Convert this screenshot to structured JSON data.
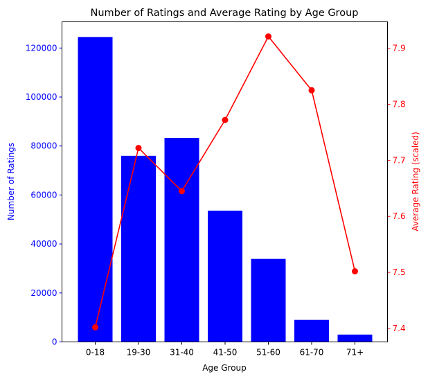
{
  "chart_data": {
    "type": "bar+line",
    "title": "Number of Ratings and Average Rating by Age Group",
    "xlabel": "Age Group",
    "ylabel_left": "Number of Ratings",
    "ylabel_right": "Average Rating (scaled)",
    "categories": [
      "0-18",
      "19-30",
      "31-40",
      "41-50",
      "51-60",
      "61-70",
      "71+"
    ],
    "bars": {
      "name": "Number of Ratings",
      "color": "#0000ff",
      "values": [
        124500,
        76000,
        83300,
        53600,
        33900,
        9000,
        3000
      ]
    },
    "line": {
      "name": "Average Rating (scaled)",
      "color": "#ff0000",
      "values": [
        7.402,
        7.722,
        7.645,
        7.772,
        7.921,
        7.825,
        7.502
      ]
    },
    "left_axis": {
      "ylim": [
        0,
        130700
      ],
      "ticks": [
        0,
        20000,
        40000,
        60000,
        80000,
        100000,
        120000
      ],
      "tick_labels": [
        "0",
        "20000",
        "40000",
        "60000",
        "80000",
        "100000",
        "120000"
      ]
    },
    "right_axis": {
      "ylim": [
        7.3759,
        7.9471
      ],
      "ticks": [
        7.4,
        7.5,
        7.6,
        7.7,
        7.8,
        7.9
      ],
      "tick_labels": [
        "7.4",
        "7.5",
        "7.6",
        "7.7",
        "7.8",
        "7.9"
      ]
    },
    "grid": false,
    "legend": "none"
  }
}
